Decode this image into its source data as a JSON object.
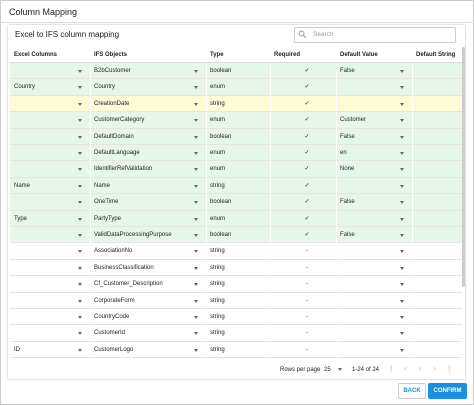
{
  "header": {
    "title": "Column Mapping"
  },
  "card": {
    "title": "Excel to IFS column mapping",
    "search_placeholder": "Search"
  },
  "table": {
    "columns": [
      "Excel Columns",
      "IFS Objects",
      "Type",
      "Required",
      "Default Value",
      "Default String"
    ],
    "rows": [
      {
        "excel": null,
        "ifs": "B2bCustomer",
        "type": "boolean",
        "required": "✓",
        "default": "False",
        "color": "#e6f7ea"
      },
      {
        "excel": "Country",
        "ifs": "Country",
        "type": "enum",
        "required": "✓",
        "default": null,
        "color": "#e6f7ea"
      },
      {
        "excel": null,
        "ifs": "CreationDate",
        "type": "string",
        "required": "✓",
        "default": null,
        "color": "#fdfbd6"
      },
      {
        "excel": null,
        "ifs": "CustomerCategory",
        "type": "enum",
        "required": "✓",
        "default": "Customer",
        "color": "#e6f7ea"
      },
      {
        "excel": null,
        "ifs": "DefaultDomain",
        "type": "boolean",
        "required": "✓",
        "default": "False",
        "color": "#e6f7ea"
      },
      {
        "excel": null,
        "ifs": "DefaultLanguage",
        "type": "enum",
        "required": "✓",
        "default": "en",
        "color": "#e6f7ea"
      },
      {
        "excel": null,
        "ifs": "IdentifierRefValidation",
        "type": "enum",
        "required": "✓",
        "default": "None",
        "color": "#e6f7ea"
      },
      {
        "excel": "Name",
        "ifs": "Name",
        "type": "string",
        "required": "✓",
        "default": null,
        "color": "#e6f7ea"
      },
      {
        "excel": null,
        "ifs": "OneTime",
        "type": "boolean",
        "required": "✓",
        "default": "False",
        "color": "#e6f7ea"
      },
      {
        "excel": "Type",
        "ifs": "PartyType",
        "type": "enum",
        "required": "✓",
        "default": null,
        "color": "#e6f7ea"
      },
      {
        "excel": null,
        "ifs": "ValidDataProcessingPurpose",
        "type": "boolean",
        "required": "✓",
        "default": "False",
        "color": "#e6f7ea"
      },
      {
        "excel": null,
        "ifs": "AssociationNo",
        "type": "string",
        "required": "-",
        "default": null,
        "color": "#ffffff"
      },
      {
        "excel": null,
        "ifs": "BusinessClassification",
        "type": "string",
        "required": "-",
        "default": null,
        "color": "#ffffff"
      },
      {
        "excel": null,
        "ifs": "Cf_Customer_Description",
        "type": "string",
        "required": "-",
        "default": null,
        "color": "#ffffff"
      },
      {
        "excel": null,
        "ifs": "CorporateForm",
        "type": "string",
        "required": "-",
        "default": null,
        "color": "#ffffff"
      },
      {
        "excel": null,
        "ifs": "CountryCode",
        "type": "string",
        "required": "-",
        "default": null,
        "color": "#ffffff"
      },
      {
        "excel": null,
        "ifs": "CustomerId",
        "type": "string",
        "required": "-",
        "default": null,
        "color": "#ffffff"
      },
      {
        "excel": "ID",
        "ifs": "CustomerLogo",
        "type": "string",
        "required": "-",
        "default": null,
        "color": "#ffffff"
      }
    ]
  },
  "pagination": {
    "rows_per_page_label": "Rows per page",
    "rows_per_page": "25",
    "range": "1-24 of 24"
  },
  "buttons": {
    "back": "BACK",
    "confirm": "CONFIRM"
  }
}
